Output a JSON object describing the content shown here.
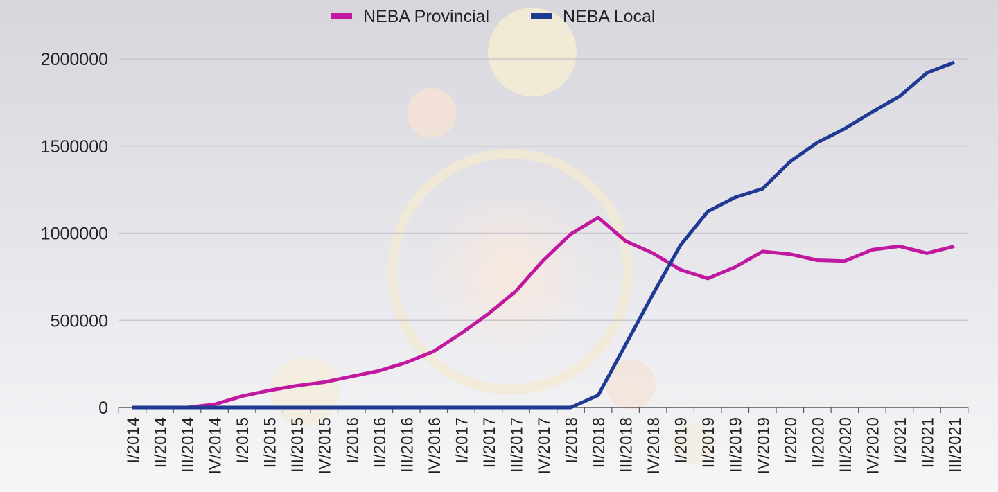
{
  "legend": [
    {
      "label": "NEBA Provincial",
      "color": "#c0189e"
    },
    {
      "label": "NEBA Local",
      "color": "#1f3a93"
    }
  ],
  "chart_data": {
    "type": "line",
    "title": "",
    "xlabel": "",
    "ylabel": "",
    "ylim": [
      0,
      2000000
    ],
    "yticks": [
      "0",
      "500000",
      "1000000",
      "1500000",
      "2000000"
    ],
    "grid": true,
    "legend_position": "top",
    "categories": [
      "I/2014",
      "II/2014",
      "III/2014",
      "IV/2014",
      "I/2015",
      "II/2015",
      "III/2015",
      "IV/2015",
      "I/2016",
      "II/2016",
      "III/2016",
      "IV/2016",
      "I/2017",
      "II/2017",
      "III/2017",
      "IV/2017",
      "I/2018",
      "II/2018",
      "III/2018",
      "IV/2018",
      "I/2019",
      "II/2019",
      "III/2019",
      "IV/2019",
      "I/2020",
      "II/2020",
      "III/2020",
      "IV/2020",
      "I/2021",
      "II/2021",
      "III/2021"
    ],
    "series": [
      {
        "name": "NEBA Provincial",
        "color": "#c0189e",
        "values": [
          0,
          0,
          0,
          18000,
          65000,
          98000,
          125000,
          145000,
          178000,
          210000,
          258000,
          322000,
          425000,
          538000,
          668000,
          845000,
          995000,
          1090000,
          955000,
          885000,
          790000,
          740000,
          805000,
          895000,
          880000,
          845000,
          840000,
          905000,
          925000,
          885000,
          925000
        ]
      },
      {
        "name": "NEBA Local",
        "color": "#1f3a93",
        "values": [
          0,
          0,
          0,
          0,
          0,
          0,
          0,
          0,
          0,
          0,
          0,
          0,
          0,
          0,
          0,
          0,
          0,
          70000,
          360000,
          650000,
          930000,
          1125000,
          1205000,
          1255000,
          1410000,
          1520000,
          1600000,
          1695000,
          1785000,
          1920000,
          1980000
        ]
      }
    ]
  }
}
